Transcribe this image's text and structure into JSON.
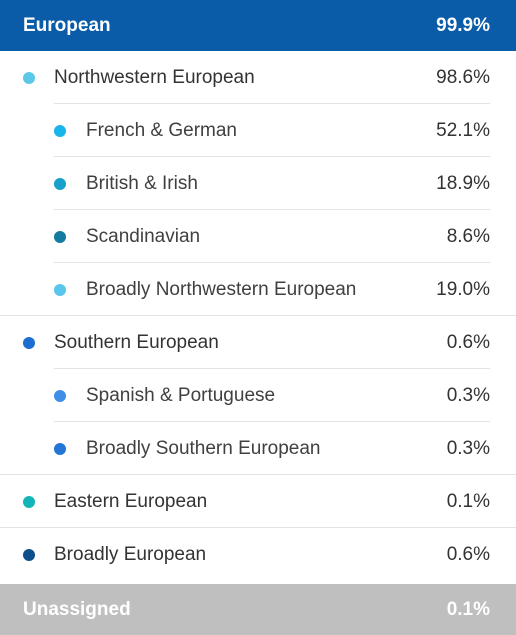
{
  "header": {
    "label": "European",
    "value": "99.9%",
    "color": "#0a5ca8"
  },
  "rows": [
    {
      "label": "Northwestern European",
      "value": "98.6%",
      "level": 1,
      "dot_color": "#5bc8ea",
      "divider": "child"
    },
    {
      "label": "French & German",
      "value": "52.1%",
      "level": 2,
      "dot_color": "#18b5ea",
      "divider": "child"
    },
    {
      "label": "British & Irish",
      "value": "18.9%",
      "level": 2,
      "dot_color": "#17a0cc",
      "divider": "child"
    },
    {
      "label": "Scandinavian",
      "value": "8.6%",
      "level": 2,
      "dot_color": "#137aa0",
      "divider": "child"
    },
    {
      "label": "Broadly Northwestern European",
      "value": "19.0%",
      "level": 2,
      "dot_color": "#59c6ec",
      "divider": "full"
    },
    {
      "label": "Southern European",
      "value": "0.6%",
      "level": 1,
      "dot_color": "#1c6fd1",
      "divider": "child"
    },
    {
      "label": "Spanish & Portuguese",
      "value": "0.3%",
      "level": 2,
      "dot_color": "#3f8fe6",
      "divider": "child"
    },
    {
      "label": "Broadly Southern European",
      "value": "0.3%",
      "level": 2,
      "dot_color": "#2376d6",
      "divider": "full"
    },
    {
      "label": "Eastern European",
      "value": "0.1%",
      "level": 1,
      "dot_color": "#12b5b8",
      "divider": "full"
    },
    {
      "label": "Broadly European",
      "value": "0.6%",
      "level": 1,
      "dot_color": "#0d4f8a",
      "divider": "none"
    }
  ],
  "footer": {
    "label": "Unassigned",
    "value": "0.1%",
    "color": "#bfbfbf"
  }
}
